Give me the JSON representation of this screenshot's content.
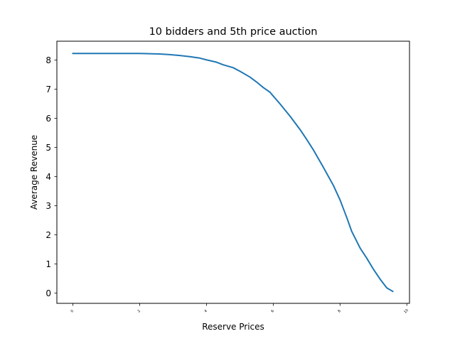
{
  "chart_data": {
    "type": "line",
    "title": "10 bidders and 5th price auction",
    "xlabel": "Reserve Prices",
    "ylabel": "Average Revenue",
    "xlim": [
      -0.48,
      10.08
    ],
    "ylim": [
      -0.35,
      8.65
    ],
    "xticks": [
      0,
      2,
      4,
      6,
      8,
      10
    ],
    "yticks": [
      0,
      1,
      2,
      3,
      4,
      5,
      6,
      7,
      8
    ],
    "grid": false,
    "color": "#1f77b4",
    "series": [
      {
        "x": [
          0,
          0.5,
          1.0,
          1.5,
          2.0,
          2.3,
          2.6,
          2.9,
          3.2,
          3.5,
          3.8,
          4.0,
          4.3,
          4.5,
          4.8,
          5.0,
          5.3,
          5.5,
          5.7,
          5.9,
          6.2,
          6.5,
          6.8,
          7.0,
          7.2,
          7.5,
          7.8,
          8.0,
          8.2,
          8.35,
          8.6,
          8.8,
          9.0,
          9.2,
          9.4,
          9.58
        ],
        "y": [
          8.23,
          8.23,
          8.23,
          8.23,
          8.23,
          8.22,
          8.21,
          8.19,
          8.16,
          8.12,
          8.07,
          8.01,
          7.93,
          7.84,
          7.74,
          7.62,
          7.42,
          7.25,
          7.06,
          6.9,
          6.5,
          6.08,
          5.62,
          5.28,
          4.92,
          4.32,
          3.7,
          3.2,
          2.6,
          2.12,
          1.55,
          1.2,
          0.82,
          0.48,
          0.18,
          0.06
        ]
      }
    ]
  }
}
